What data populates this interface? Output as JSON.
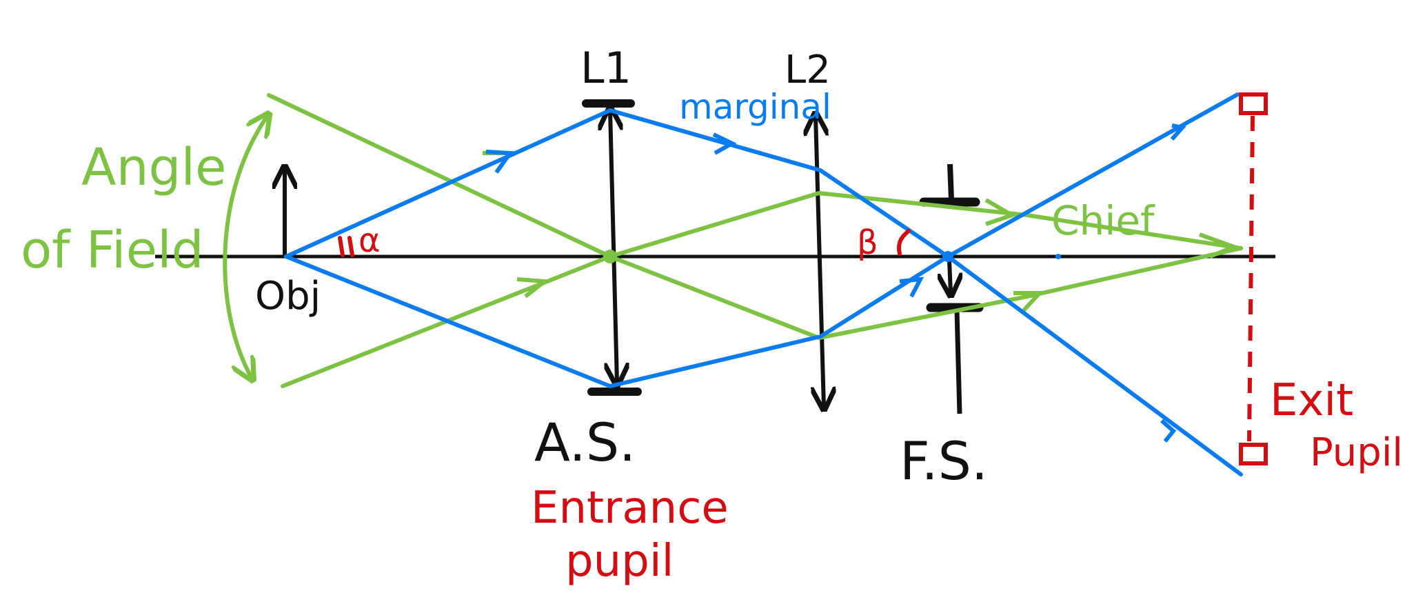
{
  "labels": {
    "angle_of_field_line1": "Angle",
    "angle_of_field_line2": "of Field",
    "object": "Obj",
    "alpha": "α",
    "lens1": "L1",
    "lens2": "L2",
    "marginal": "marginal",
    "beta": "β",
    "chief": "Chief",
    "aperture_stop": "A.S.",
    "entrance_pupil_line1": "Entrance",
    "entrance_pupil_line2": "pupil",
    "field_stop": "F.S.",
    "exit_pupil_line1": "Exit",
    "exit_pupil_line2": "Pupil"
  },
  "colors": {
    "axis": "#111111",
    "chief_ray": "#7dc243",
    "marginal_ray": "#0b7cf0",
    "pupil": "#d40d12"
  }
}
